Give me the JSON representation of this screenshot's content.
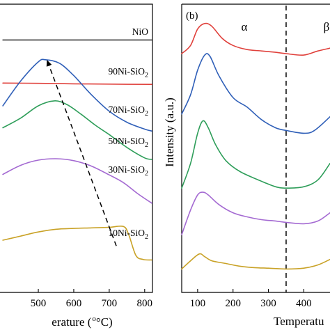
{
  "chart_data": [
    {
      "panel": "left",
      "type": "line",
      "xlabel_visible": "erature (",
      "xlabel_unit": "°C)",
      "xlim": [
        388,
        822
      ],
      "xticks": [
        "500",
        "600",
        "700",
        "800"
      ],
      "xtick_values": [
        500,
        600,
        700,
        800
      ],
      "arrow": {
        "from": [
          720,
          14.9
        ],
        "to": [
          525,
          82.5
        ],
        "style": "dashed"
      },
      "series": [
        {
          "name": "NiO",
          "label_base": "NiO",
          "label_sub": "",
          "color": "#3a3a3a",
          "x": [
            400,
            500,
            600,
            700,
            820
          ],
          "y": [
            90.0,
            90.0,
            90.0,
            90.0,
            90.0
          ]
        },
        {
          "name": "90Ni-SiO2",
          "label_base": "90Ni-SiO",
          "label_sub": "2",
          "color": "#e0413c",
          "x": [
            400,
            500,
            600,
            700,
            820
          ],
          "y": [
            74.3,
            74.2,
            74.0,
            73.9,
            73.8
          ]
        },
        {
          "name": "70Ni-SiO2",
          "label_base": "70Ni-SiO",
          "label_sub": "2",
          "color": "#2f5fb8",
          "x": [
            400,
            450,
            500,
            520,
            560,
            600,
            650,
            700,
            750,
            800,
            820
          ],
          "y": [
            66.0,
            75.0,
            82.0,
            82.8,
            81.5,
            77.0,
            70.0,
            64.0,
            60.0,
            57.5,
            56.8
          ]
        },
        {
          "name": "50Ni-SiO2",
          "label_base": "50Ni-SiO",
          "label_sub": "2",
          "color": "#2f9e5a",
          "x": [
            400,
            450,
            500,
            545,
            580,
            620,
            660,
            700,
            750,
            800,
            820
          ],
          "y": [
            58.0,
            61.5,
            66.0,
            67.8,
            66.5,
            63.0,
            59.0,
            55.5,
            50.8,
            47.0,
            46.5
          ]
        },
        {
          "name": "30Ni-SiO2",
          "label_base": "30Ni-SiO",
          "label_sub": "2",
          "color": "#a46ad2",
          "x": [
            400,
            450,
            500,
            550,
            600,
            650,
            700,
            740,
            780,
            820
          ],
          "y": [
            41.0,
            44.3,
            46.2,
            46.7,
            46.0,
            44.0,
            40.8,
            38.0,
            34.0,
            30.5
          ]
        },
        {
          "name": "10Ni-SiO2",
          "label_base": "10Ni-SiO",
          "label_sub": "2",
          "color": "#c9a227",
          "x": [
            400,
            450,
            500,
            550,
            600,
            650,
            700,
            740,
            755,
            775,
            795,
            820
          ],
          "y": [
            17.0,
            18.5,
            20.0,
            21.0,
            21.3,
            21.5,
            21.7,
            22.0,
            19.0,
            11.5,
            10.0,
            9.8
          ]
        }
      ]
    },
    {
      "panel": "right",
      "type": "line",
      "panel_label": "(b)",
      "ylabel": "Intensity (a.u.)",
      "xlabel_visible": "Temperatu",
      "xlim": [
        55,
        474
      ],
      "xticks": [
        "100",
        "200",
        "300",
        "400"
      ],
      "xtick_values": [
        100,
        200,
        300,
        400
      ],
      "divider_x": 350,
      "regions": [
        "α",
        "β"
      ],
      "series": [
        {
          "color": "#e0413c",
          "x": [
            55,
            80,
            100,
            120,
            140,
            170,
            200,
            240,
            280,
            320,
            350,
            400,
            440,
            474
          ],
          "y": [
            85.0,
            88.0,
            94.0,
            96.0,
            95.0,
            90.5,
            88.0,
            86.5,
            86.0,
            85.5,
            85.0,
            84.5,
            86.0,
            87.0
          ]
        },
        {
          "color": "#2f5fb8",
          "x": [
            55,
            80,
            100,
            120,
            135,
            160,
            200,
            240,
            280,
            320,
            350,
            400,
            430,
            474
          ],
          "y": [
            63.0,
            70.0,
            79.0,
            84.5,
            84.0,
            77.0,
            69.0,
            65.5,
            61.0,
            58.0,
            57.0,
            56.0,
            57.0,
            62.0
          ]
        },
        {
          "color": "#2f9e5a",
          "x": [
            55,
            80,
            100,
            115,
            130,
            150,
            180,
            220,
            280,
            320,
            350,
            400,
            440,
            474
          ],
          "y": [
            36.0,
            45.0,
            56.0,
            60.5,
            58.0,
            52.0,
            46.0,
            42.0,
            38.5,
            36.5,
            36.0,
            36.5,
            39.0,
            45.0
          ]
        },
        {
          "color": "#a46ad2",
          "x": [
            55,
            80,
            100,
            115,
            130,
            160,
            200,
            240,
            280,
            320,
            350,
            400,
            440,
            474
          ],
          "y": [
            19.0,
            28.0,
            33.5,
            34.5,
            33.5,
            30.0,
            27.0,
            25.5,
            24.5,
            24.0,
            23.5,
            23.0,
            24.0,
            27.0
          ]
        },
        {
          "color": "#c9a227",
          "x": [
            55,
            80,
            105,
            120,
            140,
            180,
            220,
            260,
            300,
            350,
            400,
            440,
            474
          ],
          "y": [
            6.5,
            9.5,
            12.0,
            11.0,
            9.5,
            8.5,
            7.5,
            7.0,
            6.8,
            6.5,
            6.8,
            8.0,
            10.0
          ]
        }
      ]
    }
  ]
}
